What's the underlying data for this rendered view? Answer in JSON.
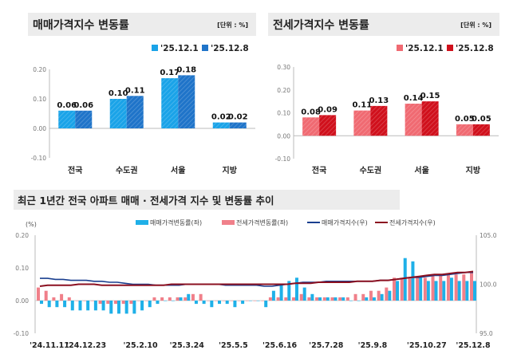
{
  "chart_data": [
    {
      "type": "bar",
      "title": "매매가격지수 변동률",
      "unit": "[단위 : %]",
      "categories": [
        "전국",
        "수도권",
        "서울",
        "지방"
      ],
      "series": [
        {
          "name": "'25.12.1",
          "values": [
            0.06,
            0.1,
            0.17,
            0.02
          ],
          "color": "#1aa3e8"
        },
        {
          "name": "'25.12.8",
          "values": [
            0.06,
            0.11,
            0.18,
            0.02
          ],
          "color": "#1f74c9"
        }
      ],
      "ylim": [
        -0.1,
        0.2
      ],
      "yticks": [
        "0.20",
        "0.10",
        "0.00",
        "-0.10"
      ],
      "legend": "top-right",
      "data_labels": true
    },
    {
      "type": "bar",
      "title": "전세가격지수 변동률",
      "unit": "[단위 : %]",
      "categories": [
        "전국",
        "수도권",
        "서울",
        "지방"
      ],
      "series": [
        {
          "name": "'25.12.1",
          "values": [
            0.08,
            0.11,
            0.14,
            0.05
          ],
          "color": "#f06a72"
        },
        {
          "name": "'25.12.8",
          "values": [
            0.09,
            0.13,
            0.15,
            0.05
          ],
          "color": "#d0101c"
        }
      ],
      "ylim": [
        -0.1,
        0.3
      ],
      "yticks": [
        "0.30",
        "0.20",
        "0.10",
        "0.00",
        "-0.10"
      ],
      "legend": "top-right",
      "data_labels": true
    },
    {
      "type": "bar+line",
      "title": "최근 1년간 전국 아파트 매매 · 전세가격 지수 및 변동률 추이",
      "ylabel_left": "(%)",
      "ylim_left": [
        -0.1,
        0.2
      ],
      "yticks_left": [
        "0.20",
        "0.10",
        "0.00",
        "-0.10"
      ],
      "ylim_right": [
        95.0,
        105.0
      ],
      "yticks_right": [
        "105.0",
        "100.0",
        "95.0"
      ],
      "xtick_labels": [
        "'24.11.11",
        "'24.12.23",
        "'25.2.10",
        "'25.3.24",
        "'25.5.5",
        "'25.6.16",
        "'25.7.28",
        "'25.9.8",
        "'25.10.27",
        "'25.12.8"
      ],
      "x_start": "2024-11-11",
      "x_interval": "weekly",
      "legend": "top",
      "series": [
        {
          "name": "매매가격변동률(좌)",
          "type": "bar",
          "axis": "left",
          "color": "#1fb0e8",
          "values": [
            -0.01,
            -0.02,
            -0.02,
            -0.02,
            -0.03,
            -0.03,
            -0.03,
            -0.03,
            -0.03,
            -0.04,
            -0.04,
            -0.04,
            -0.04,
            -0.03,
            -0.02,
            -0.01,
            0.0,
            0.0,
            0.01,
            0.02,
            -0.01,
            -0.01,
            -0.02,
            -0.01,
            -0.01,
            -0.02,
            -0.01,
            0.0,
            0.0,
            -0.02,
            0.03,
            0.05,
            0.06,
            0.07,
            0.04,
            0.02,
            0.01,
            0.01,
            0.01,
            0.01,
            0.0,
            0.0,
            0.01,
            0.01,
            0.02,
            0.03,
            0.06,
            0.13,
            0.12,
            0.07,
            0.06,
            0.06,
            0.06,
            0.07,
            0.06,
            0.06,
            0.06
          ]
        },
        {
          "name": "전세가격변동률(좌)",
          "type": "bar",
          "axis": "left",
          "color": "#f0808a",
          "values": [
            0.04,
            0.03,
            0.01,
            0.02,
            0.01,
            0.0,
            0.0,
            0.0,
            -0.01,
            -0.01,
            -0.01,
            -0.01,
            -0.01,
            0.0,
            0.0,
            0.01,
            0.01,
            0.01,
            0.01,
            0.01,
            0.02,
            0.02,
            0.0,
            0.0,
            0.0,
            0.0,
            0.0,
            0.0,
            0.0,
            0.0,
            0.01,
            0.01,
            0.01,
            0.01,
            0.02,
            0.01,
            0.01,
            0.01,
            0.01,
            0.01,
            0.01,
            0.02,
            0.02,
            0.03,
            0.03,
            0.04,
            0.07,
            0.07,
            0.07,
            0.07,
            0.07,
            0.08,
            0.08,
            0.08,
            0.08,
            0.08,
            0.09
          ]
        },
        {
          "name": "매매가격지수(우)",
          "type": "line",
          "axis": "right",
          "color": "#1a3f8f",
          "values": [
            100.6,
            100.6,
            100.5,
            100.5,
            100.4,
            100.4,
            100.4,
            100.3,
            100.3,
            100.2,
            100.2,
            100.1,
            100.0,
            100.0,
            100.0,
            99.9,
            99.9,
            99.9,
            99.9,
            100.0,
            100.0,
            100.0,
            100.0,
            100.0,
            99.9,
            99.9,
            99.9,
            99.9,
            99.9,
            99.8,
            99.8,
            99.9,
            100.0,
            100.1,
            100.2,
            100.2,
            100.2,
            100.3,
            100.3,
            100.3,
            100.3,
            100.3,
            100.3,
            100.3,
            100.4,
            100.4,
            100.5,
            100.6,
            100.7,
            100.7,
            100.8,
            100.9,
            100.9,
            101.0,
            101.1,
            101.2,
            101.2
          ]
        },
        {
          "name": "전세가격지수(우)",
          "type": "line",
          "axis": "right",
          "color": "#8b1020",
          "values": [
            99.8,
            99.9,
            99.9,
            99.9,
            99.9,
            100.0,
            100.0,
            100.0,
            99.9,
            99.9,
            99.9,
            99.9,
            99.9,
            99.9,
            99.9,
            99.9,
            99.9,
            100.0,
            100.0,
            100.0,
            100.0,
            100.0,
            100.0,
            100.0,
            100.0,
            100.0,
            100.0,
            100.0,
            100.0,
            100.0,
            100.0,
            100.0,
            100.0,
            100.1,
            100.1,
            100.1,
            100.2,
            100.2,
            100.2,
            100.2,
            100.2,
            100.3,
            100.3,
            100.3,
            100.4,
            100.4,
            100.5,
            100.6,
            100.7,
            100.8,
            100.9,
            101.0,
            101.0,
            101.1,
            101.2,
            101.2,
            101.3
          ]
        }
      ]
    }
  ]
}
